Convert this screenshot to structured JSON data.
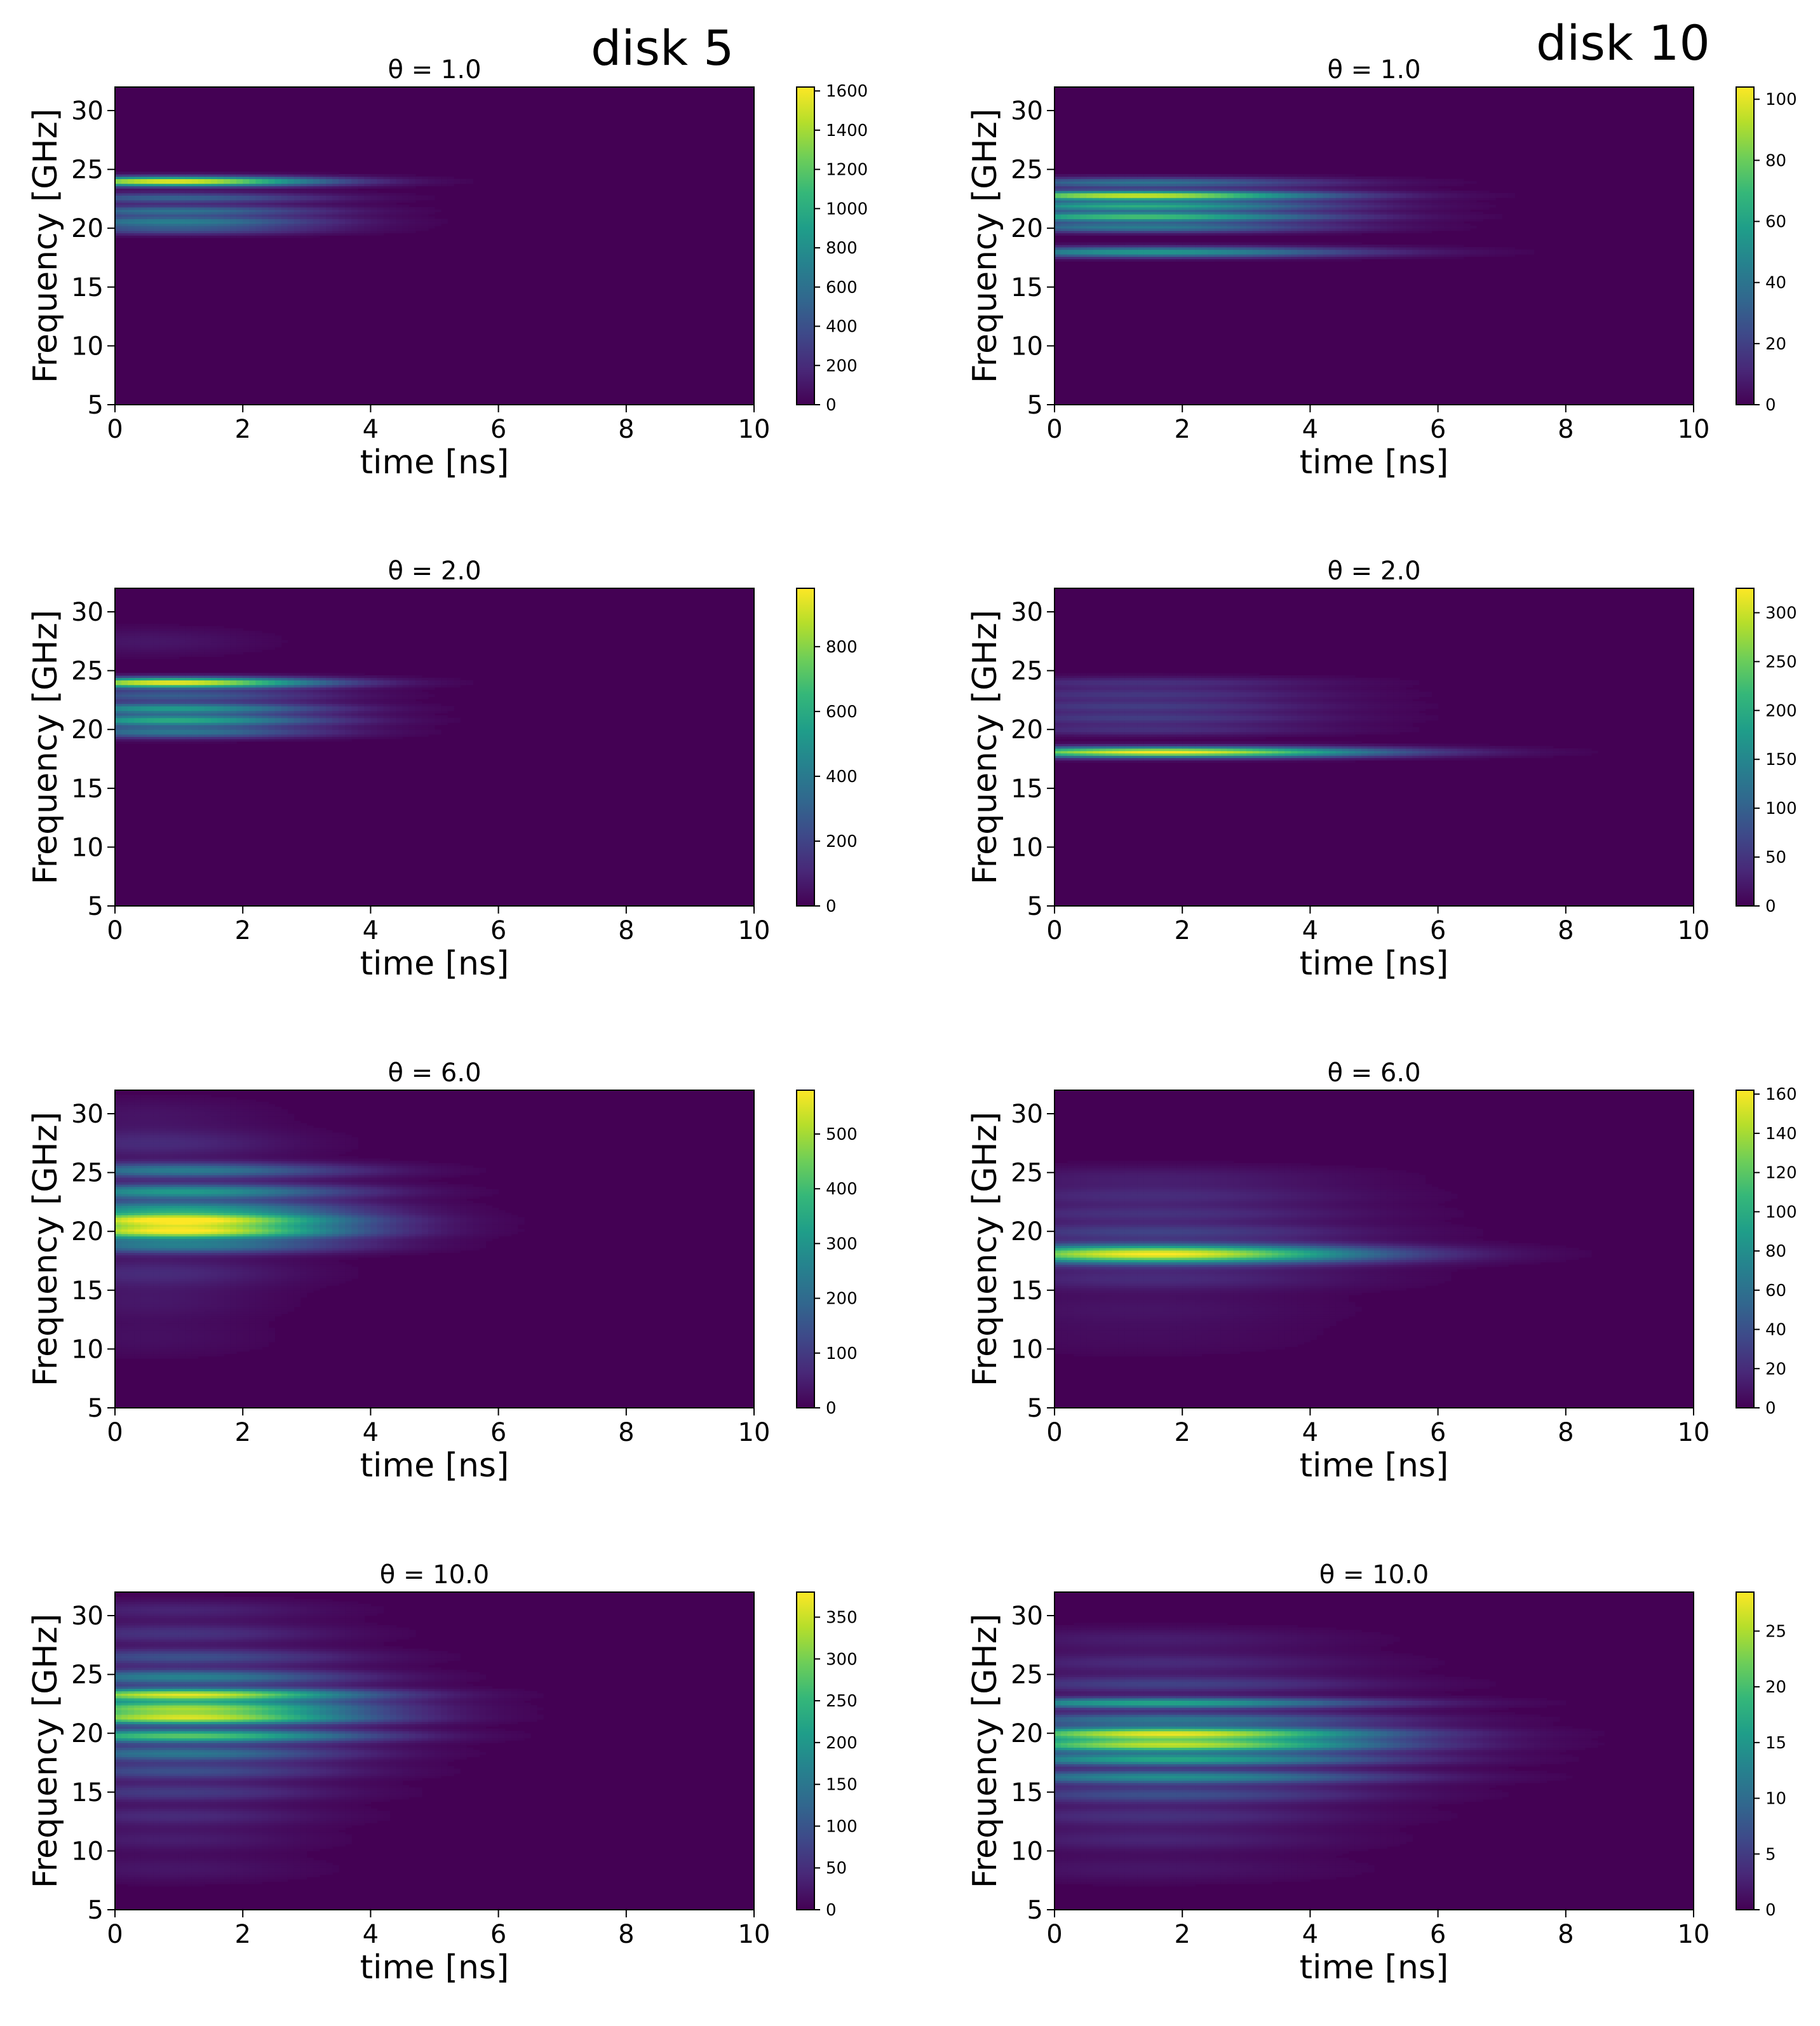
{
  "figure": {
    "column_labels": [
      "disk 5",
      "disk 10"
    ]
  },
  "chart_data": [
    {
      "type": "heatmap",
      "column": "disk 5",
      "title": "θ = 1.0",
      "xlabel": "time [ns]",
      "ylabel": "Frequency [GHz]",
      "xlim": [
        0,
        10
      ],
      "ylim": [
        5,
        32
      ],
      "xticks": [
        "0",
        "2",
        "4",
        "6",
        "8",
        "10"
      ],
      "yticks": [
        "5",
        "10",
        "15",
        "20",
        "25",
        "30"
      ],
      "colorbar": {
        "min": 0,
        "max": 1620,
        "ticks": [
          "0",
          "200",
          "400",
          "600",
          "800",
          "1000",
          "1200",
          "1400",
          "1600"
        ]
      },
      "bands": [
        {
          "freq": 24.0,
          "amp": 1.0,
          "t_peak": 0.9,
          "t_decay": 1.6,
          "width": 0.28
        },
        {
          "freq": 22.6,
          "amp": 0.32,
          "t_peak": 0.9,
          "t_decay": 1.6,
          "width": 0.3
        },
        {
          "freq": 21.5,
          "amp": 0.38,
          "t_peak": 0.9,
          "t_decay": 1.6,
          "width": 0.3
        },
        {
          "freq": 20.6,
          "amp": 0.42,
          "t_peak": 0.9,
          "t_decay": 1.6,
          "width": 0.3
        },
        {
          "freq": 19.9,
          "amp": 0.25,
          "t_peak": 0.9,
          "t_decay": 1.6,
          "width": 0.3
        }
      ]
    },
    {
      "type": "heatmap",
      "column": "disk 10",
      "title": "θ = 1.0",
      "xlabel": "time [ns]",
      "ylabel": "Frequency [GHz]",
      "xlim": [
        0,
        10
      ],
      "ylim": [
        5,
        32
      ],
      "xticks": [
        "0",
        "2",
        "4",
        "6",
        "8",
        "10"
      ],
      "yticks": [
        "5",
        "10",
        "15",
        "20",
        "25",
        "30"
      ],
      "colorbar": {
        "min": 0,
        "max": 104,
        "ticks": [
          "0",
          "20",
          "40",
          "60",
          "80",
          "100"
        ]
      },
      "bands": [
        {
          "freq": 23.9,
          "amp": 0.38,
          "t_peak": 1.3,
          "t_decay": 2.0,
          "width": 0.3
        },
        {
          "freq": 22.8,
          "amp": 0.95,
          "t_peak": 1.3,
          "t_decay": 2.0,
          "width": 0.28
        },
        {
          "freq": 21.9,
          "amp": 0.62,
          "t_peak": 1.3,
          "t_decay": 2.0,
          "width": 0.28
        },
        {
          "freq": 21.0,
          "amp": 0.72,
          "t_peak": 1.3,
          "t_decay": 2.0,
          "width": 0.28
        },
        {
          "freq": 20.1,
          "amp": 0.42,
          "t_peak": 1.3,
          "t_decay": 2.0,
          "width": 0.3
        },
        {
          "freq": 18.0,
          "amp": 0.55,
          "t_peak": 1.5,
          "t_decay": 2.2,
          "width": 0.3
        }
      ]
    },
    {
      "type": "heatmap",
      "column": "disk 5",
      "title": "θ = 2.0",
      "xlabel": "time [ns]",
      "ylabel": "Frequency [GHz]",
      "xlim": [
        0,
        10
      ],
      "ylim": [
        5,
        32
      ],
      "xticks": [
        "0",
        "2",
        "4",
        "6",
        "8",
        "10"
      ],
      "yticks": [
        "5",
        "10",
        "15",
        "20",
        "25",
        "30"
      ],
      "colorbar": {
        "min": 0,
        "max": 980,
        "ticks": [
          "0",
          "200",
          "400",
          "600",
          "800"
        ]
      },
      "bands": [
        {
          "freq": 24.0,
          "amp": 1.0,
          "t_peak": 0.9,
          "t_decay": 1.6,
          "width": 0.3
        },
        {
          "freq": 22.9,
          "amp": 0.3,
          "t_peak": 0.9,
          "t_decay": 1.6,
          "width": 0.35
        },
        {
          "freq": 21.8,
          "amp": 0.55,
          "t_peak": 0.9,
          "t_decay": 1.6,
          "width": 0.32
        },
        {
          "freq": 20.8,
          "amp": 0.62,
          "t_peak": 0.9,
          "t_decay": 1.6,
          "width": 0.32
        },
        {
          "freq": 19.8,
          "amp": 0.4,
          "t_peak": 0.9,
          "t_decay": 1.6,
          "width": 0.35
        },
        {
          "freq": 27.5,
          "amp": 0.06,
          "t_peak": 0.5,
          "t_decay": 1.2,
          "width": 0.8
        }
      ]
    },
    {
      "type": "heatmap",
      "column": "disk 10",
      "title": "θ = 2.0",
      "xlabel": "time [ns]",
      "ylabel": "Frequency [GHz]",
      "xlim": [
        0,
        10
      ],
      "ylim": [
        5,
        32
      ],
      "xticks": [
        "0",
        "2",
        "4",
        "6",
        "8",
        "10"
      ],
      "yticks": [
        "5",
        "10",
        "15",
        "20",
        "25",
        "30"
      ],
      "colorbar": {
        "min": 0,
        "max": 325,
        "ticks": [
          "0",
          "50",
          "100",
          "150",
          "200",
          "250",
          "300"
        ]
      },
      "bands": [
        {
          "freq": 24.0,
          "amp": 0.14,
          "t_peak": 1.3,
          "t_decay": 2.0,
          "width": 0.35
        },
        {
          "freq": 23.0,
          "amp": 0.16,
          "t_peak": 1.3,
          "t_decay": 2.0,
          "width": 0.35
        },
        {
          "freq": 22.0,
          "amp": 0.18,
          "t_peak": 1.3,
          "t_decay": 2.0,
          "width": 0.35
        },
        {
          "freq": 21.0,
          "amp": 0.18,
          "t_peak": 1.3,
          "t_decay": 2.0,
          "width": 0.35
        },
        {
          "freq": 20.0,
          "amp": 0.14,
          "t_peak": 1.3,
          "t_decay": 2.0,
          "width": 0.35
        },
        {
          "freq": 18.1,
          "amp": 1.0,
          "t_peak": 1.7,
          "t_decay": 2.3,
          "width": 0.3
        }
      ]
    },
    {
      "type": "heatmap",
      "column": "disk 5",
      "title": "θ = 6.0",
      "xlabel": "time [ns]",
      "ylabel": "Frequency [GHz]",
      "xlim": [
        0,
        10
      ],
      "ylim": [
        5,
        32
      ],
      "xticks": [
        "0",
        "2",
        "4",
        "6",
        "8",
        "10"
      ],
      "yticks": [
        "5",
        "10",
        "15",
        "20",
        "25",
        "30"
      ],
      "colorbar": {
        "min": 0,
        "max": 580,
        "ticks": [
          "0",
          "100",
          "200",
          "300",
          "400",
          "500"
        ]
      },
      "bands": [
        {
          "freq": 25.2,
          "amp": 0.42,
          "t_peak": 1.0,
          "t_decay": 1.8,
          "width": 0.45
        },
        {
          "freq": 23.4,
          "amp": 0.55,
          "t_peak": 1.0,
          "t_decay": 1.8,
          "width": 0.45
        },
        {
          "freq": 22.0,
          "amp": 0.5,
          "t_peak": 1.0,
          "t_decay": 1.8,
          "width": 0.42
        },
        {
          "freq": 21.0,
          "amp": 0.98,
          "t_peak": 1.0,
          "t_decay": 1.8,
          "width": 0.42
        },
        {
          "freq": 20.0,
          "amp": 0.95,
          "t_peak": 1.0,
          "t_decay": 1.8,
          "width": 0.42
        },
        {
          "freq": 18.8,
          "amp": 0.42,
          "t_peak": 1.0,
          "t_decay": 1.8,
          "width": 0.45
        },
        {
          "freq": 27.5,
          "amp": 0.12,
          "t_peak": 0.6,
          "t_decay": 1.5,
          "width": 0.9
        },
        {
          "freq": 16.5,
          "amp": 0.12,
          "t_peak": 0.6,
          "t_decay": 1.5,
          "width": 0.9
        },
        {
          "freq": 30.0,
          "amp": 0.05,
          "t_peak": 0.5,
          "t_decay": 1.3,
          "width": 1.0
        },
        {
          "freq": 14.0,
          "amp": 0.06,
          "t_peak": 0.5,
          "t_decay": 1.3,
          "width": 1.0
        },
        {
          "freq": 11.0,
          "amp": 0.04,
          "t_peak": 0.5,
          "t_decay": 1.3,
          "width": 1.2
        }
      ]
    },
    {
      "type": "heatmap",
      "column": "disk 10",
      "title": "θ = 6.0",
      "xlabel": "time [ns]",
      "ylabel": "Frequency [GHz]",
      "xlim": [
        0,
        10
      ],
      "ylim": [
        5,
        32
      ],
      "xticks": [
        "0",
        "2",
        "4",
        "6",
        "8",
        "10"
      ],
      "yticks": [
        "5",
        "10",
        "15",
        "20",
        "25",
        "30"
      ],
      "colorbar": {
        "min": 0,
        "max": 162,
        "ticks": [
          "0",
          "20",
          "40",
          "60",
          "80",
          "100",
          "120",
          "140",
          "160"
        ]
      },
      "bands": [
        {
          "freq": 18.1,
          "amp": 1.0,
          "t_peak": 1.6,
          "t_decay": 2.3,
          "width": 0.55
        },
        {
          "freq": 20.0,
          "amp": 0.2,
          "t_peak": 1.5,
          "t_decay": 2.2,
          "width": 0.5
        },
        {
          "freq": 21.5,
          "amp": 0.14,
          "t_peak": 1.5,
          "t_decay": 2.2,
          "width": 0.5
        },
        {
          "freq": 23.0,
          "amp": 0.12,
          "t_peak": 1.5,
          "t_decay": 2.2,
          "width": 0.6
        },
        {
          "freq": 24.6,
          "amp": 0.08,
          "t_peak": 1.5,
          "t_decay": 2.2,
          "width": 0.7
        },
        {
          "freq": 16.0,
          "amp": 0.12,
          "t_peak": 1.5,
          "t_decay": 2.2,
          "width": 0.7
        },
        {
          "freq": 13.5,
          "amp": 0.05,
          "t_peak": 1.3,
          "t_decay": 2.0,
          "width": 1.0
        },
        {
          "freq": 11.0,
          "amp": 0.03,
          "t_peak": 1.3,
          "t_decay": 2.0,
          "width": 1.2
        }
      ]
    },
    {
      "type": "heatmap",
      "column": "disk 5",
      "title": "θ = 10.0",
      "xlabel": "time [ns]",
      "ylabel": "Frequency [GHz]",
      "xlim": [
        0,
        10
      ],
      "ylim": [
        5,
        32
      ],
      "xticks": [
        "0",
        "2",
        "4",
        "6",
        "8",
        "10"
      ],
      "yticks": [
        "5",
        "10",
        "15",
        "20",
        "25",
        "30"
      ],
      "colorbar": {
        "min": 0,
        "max": 380,
        "ticks": [
          "0",
          "50",
          "100",
          "150",
          "200",
          "250",
          "300",
          "350"
        ]
      },
      "bands": [
        {
          "freq": 23.3,
          "amp": 0.95,
          "t_peak": 1.1,
          "t_decay": 1.9,
          "width": 0.38
        },
        {
          "freq": 22.2,
          "amp": 0.8,
          "t_peak": 1.1,
          "t_decay": 1.9,
          "width": 0.38
        },
        {
          "freq": 21.3,
          "amp": 0.9,
          "t_peak": 1.1,
          "t_decay": 1.9,
          "width": 0.38
        },
        {
          "freq": 19.8,
          "amp": 0.75,
          "t_peak": 1.1,
          "t_decay": 1.9,
          "width": 0.4
        },
        {
          "freq": 24.8,
          "amp": 0.45,
          "t_peak": 1.0,
          "t_decay": 1.8,
          "width": 0.45
        },
        {
          "freq": 26.5,
          "amp": 0.25,
          "t_peak": 1.0,
          "t_decay": 1.8,
          "width": 0.5
        },
        {
          "freq": 28.5,
          "amp": 0.15,
          "t_peak": 0.9,
          "t_decay": 1.7,
          "width": 0.6
        },
        {
          "freq": 30.5,
          "amp": 0.1,
          "t_peak": 0.9,
          "t_decay": 1.6,
          "width": 0.6
        },
        {
          "freq": 18.3,
          "amp": 0.4,
          "t_peak": 1.0,
          "t_decay": 1.8,
          "width": 0.45
        },
        {
          "freq": 16.8,
          "amp": 0.25,
          "t_peak": 1.0,
          "t_decay": 1.8,
          "width": 0.5
        },
        {
          "freq": 15.0,
          "amp": 0.18,
          "t_peak": 0.9,
          "t_decay": 1.7,
          "width": 0.55
        },
        {
          "freq": 13.0,
          "amp": 0.12,
          "t_peak": 0.9,
          "t_decay": 1.6,
          "width": 0.6
        },
        {
          "freq": 11.0,
          "amp": 0.08,
          "t_peak": 0.8,
          "t_decay": 1.5,
          "width": 0.7
        },
        {
          "freq": 8.5,
          "amp": 0.06,
          "t_peak": 0.8,
          "t_decay": 1.5,
          "width": 0.8
        }
      ]
    },
    {
      "type": "heatmap",
      "column": "disk 10",
      "title": "θ = 10.0",
      "xlabel": "time [ns]",
      "ylabel": "Frequency [GHz]",
      "xlim": [
        0,
        10
      ],
      "ylim": [
        5,
        32
      ],
      "xticks": [
        "0",
        "2",
        "4",
        "6",
        "8",
        "10"
      ],
      "yticks": [
        "5",
        "10",
        "15",
        "20",
        "25",
        "30"
      ],
      "colorbar": {
        "min": 0,
        "max": 28.5,
        "ticks": [
          "0",
          "5",
          "10",
          "15",
          "20",
          "25"
        ]
      },
      "bands": [
        {
          "freq": 22.6,
          "amp": 0.6,
          "t_peak": 1.6,
          "t_decay": 2.3,
          "width": 0.32
        },
        {
          "freq": 20.0,
          "amp": 0.95,
          "t_peak": 1.8,
          "t_decay": 2.3,
          "width": 0.38
        },
        {
          "freq": 19.0,
          "amp": 0.88,
          "t_peak": 1.8,
          "t_decay": 2.3,
          "width": 0.38
        },
        {
          "freq": 17.8,
          "amp": 0.6,
          "t_peak": 1.8,
          "t_decay": 2.3,
          "width": 0.38
        },
        {
          "freq": 16.3,
          "amp": 0.5,
          "t_peak": 1.8,
          "t_decay": 2.3,
          "width": 0.4
        },
        {
          "freq": 21.2,
          "amp": 0.4,
          "t_peak": 1.8,
          "t_decay": 2.3,
          "width": 0.4
        },
        {
          "freq": 24.2,
          "amp": 0.2,
          "t_peak": 1.7,
          "t_decay": 2.2,
          "width": 0.5
        },
        {
          "freq": 26.0,
          "amp": 0.12,
          "t_peak": 1.6,
          "t_decay": 2.1,
          "width": 0.6
        },
        {
          "freq": 28.0,
          "amp": 0.08,
          "t_peak": 1.5,
          "t_decay": 2.0,
          "width": 0.7
        },
        {
          "freq": 14.8,
          "amp": 0.25,
          "t_peak": 1.7,
          "t_decay": 2.2,
          "width": 0.5
        },
        {
          "freq": 13.0,
          "amp": 0.14,
          "t_peak": 1.6,
          "t_decay": 2.1,
          "width": 0.6
        },
        {
          "freq": 11.0,
          "amp": 0.1,
          "t_peak": 1.5,
          "t_decay": 2.0,
          "width": 0.7
        },
        {
          "freq": 8.5,
          "amp": 0.06,
          "t_peak": 1.4,
          "t_decay": 2.0,
          "width": 0.8
        }
      ]
    }
  ]
}
